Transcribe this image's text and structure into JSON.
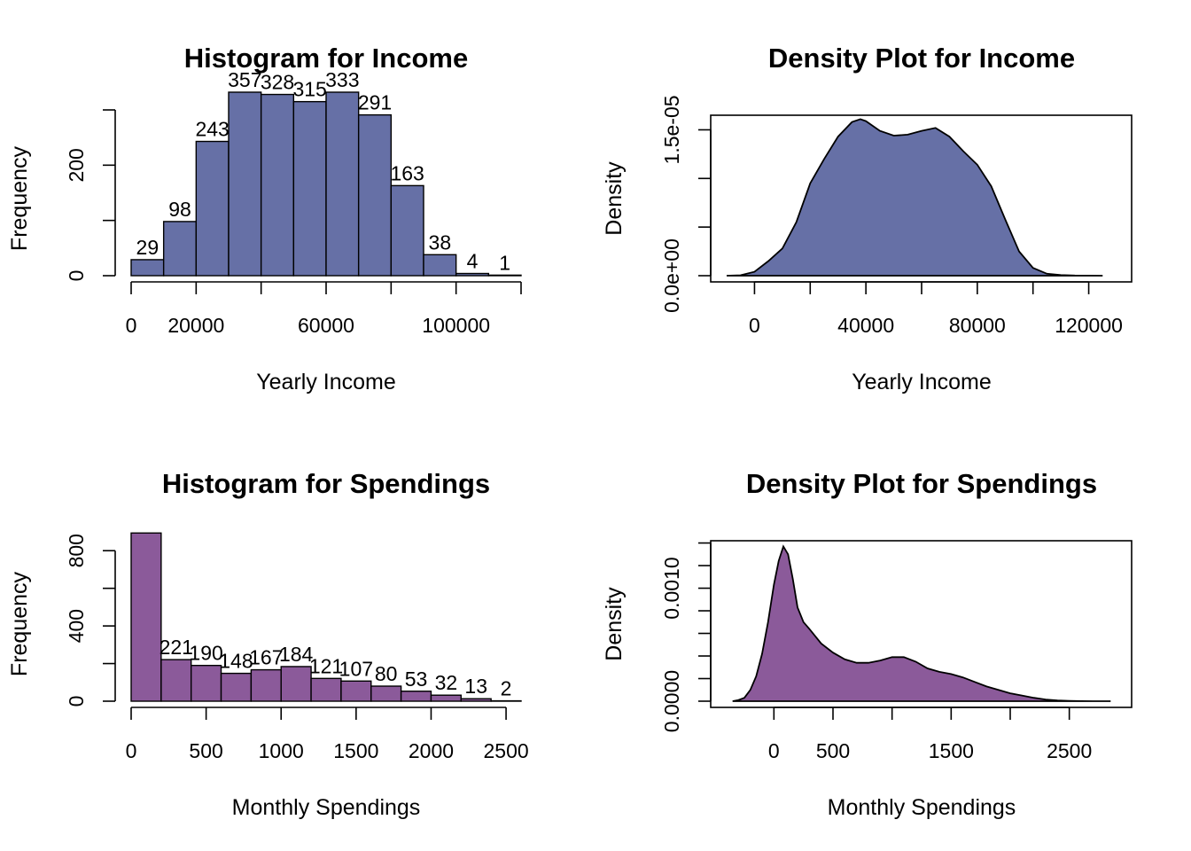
{
  "chart_data": [
    {
      "type": "bar",
      "subtype": "histogram",
      "title": "Histogram for Income",
      "xlabel": "Yearly Income",
      "ylabel": "Frequency",
      "color": "#6670a6",
      "xlim": [
        0,
        120000
      ],
      "ylim": [
        0,
        300
      ],
      "x_ticks": [
        0,
        20000,
        40000,
        60000,
        80000,
        100000,
        120000
      ],
      "x_tick_labels": [
        "0",
        "20000",
        "",
        "60000",
        "",
        "100000",
        ""
      ],
      "y_ticks": [
        0,
        100,
        200,
        300
      ],
      "y_tick_labels": [
        "0",
        "",
        "200",
        ""
      ],
      "bin_edges": [
        0,
        10000,
        20000,
        30000,
        40000,
        50000,
        60000,
        70000,
        80000,
        90000,
        100000,
        110000,
        120000
      ],
      "values": [
        29,
        98,
        243,
        357,
        328,
        315,
        333,
        291,
        163,
        38,
        4,
        1
      ],
      "data_labels": [
        "29",
        "98",
        "243",
        "357",
        "328",
        "315",
        "333",
        "291",
        "163",
        "38",
        "4",
        "1"
      ]
    },
    {
      "type": "area",
      "subtype": "density",
      "title": "Density Plot for Income",
      "xlabel": "Yearly Income",
      "ylabel": "Density",
      "color": "#6670a6",
      "xlim": [
        -10000,
        130000
      ],
      "ylim": [
        0,
        1.65e-05
      ],
      "x_ticks": [
        0,
        20000,
        40000,
        60000,
        80000,
        100000,
        120000
      ],
      "x_tick_labels": [
        "0",
        "",
        "40000",
        "",
        "80000",
        "",
        "120000"
      ],
      "y_ticks": [
        0,
        5e-06,
        1e-05,
        1.5e-05
      ],
      "y_tick_labels": [
        "0.0e+00",
        "",
        "",
        "1.5e-05"
      ],
      "x": [
        -10000,
        -5000,
        0,
        5000,
        10000,
        15000,
        20000,
        25000,
        30000,
        35000,
        38000,
        40000,
        45000,
        50000,
        55000,
        60000,
        65000,
        70000,
        75000,
        80000,
        85000,
        90000,
        95000,
        100000,
        105000,
        110000,
        115000,
        120000,
        125000
      ],
      "y": [
        0.0,
        5e-08,
        4e-07,
        1.5e-06,
        2.8e-06,
        5.5e-06,
        9.5e-06,
        1.2e-05,
        1.43e-05,
        1.58e-05,
        1.61e-05,
        1.59e-05,
        1.49e-05,
        1.44e-05,
        1.45e-05,
        1.49e-05,
        1.52e-05,
        1.43e-05,
        1.28e-05,
        1.14e-05,
        9.2e-06,
        5.8e-06,
        2.5e-06,
        8e-07,
        2e-07,
        6e-08,
        2e-08,
        1e-08,
        0.0
      ]
    },
    {
      "type": "bar",
      "subtype": "histogram",
      "title": "Histogram for Spendings",
      "xlabel": "Monthly Spendings",
      "ylabel": "Frequency",
      "color": "#8b5a9a",
      "xlim": [
        0,
        2600
      ],
      "ylim": [
        0,
        900
      ],
      "x_ticks": [
        0,
        500,
        1000,
        1500,
        2000,
        2500
      ],
      "x_tick_labels": [
        "0",
        "500",
        "1000",
        "1500",
        "2000",
        "2500"
      ],
      "y_ticks": [
        0,
        200,
        400,
        600,
        800
      ],
      "y_tick_labels": [
        "0",
        "",
        "400",
        "",
        "800"
      ],
      "bin_edges": [
        0,
        200,
        400,
        600,
        800,
        1000,
        1200,
        1400,
        1600,
        1800,
        2000,
        2200,
        2400,
        2600
      ],
      "values": [
        894,
        221,
        190,
        148,
        167,
        184,
        121,
        107,
        80,
        53,
        32,
        13,
        2
      ],
      "data_labels": [
        "",
        "221",
        "190",
        "148",
        "167",
        "184",
        "121",
        "107",
        "80",
        "53",
        "32",
        "13",
        "2"
      ]
    },
    {
      "type": "area",
      "subtype": "density",
      "title": "Density Plot for Spendings",
      "xlabel": "Monthly Spendings",
      "ylabel": "Density",
      "color": "#8b5a9a",
      "xlim": [
        -400,
        2900
      ],
      "ylim": [
        0,
        0.00142
      ],
      "x_ticks": [
        0,
        500,
        1000,
        1500,
        2000,
        2500
      ],
      "x_tick_labels": [
        "0",
        "500",
        "",
        "1500",
        "",
        "2500"
      ],
      "y_ticks": [
        0,
        0.0002,
        0.0004,
        0.0006,
        0.0008,
        0.001,
        0.0012,
        0.0014
      ],
      "y_tick_labels": [
        "0.0000",
        "",
        "",
        "",
        "",
        "0.0010",
        "",
        ""
      ],
      "x": [
        -350,
        -300,
        -250,
        -200,
        -150,
        -100,
        -50,
        0,
        40,
        80,
        120,
        160,
        200,
        250,
        300,
        400,
        500,
        600,
        700,
        800,
        900,
        1000,
        1100,
        1200,
        1300,
        1400,
        1500,
        1600,
        1700,
        1800,
        1900,
        2000,
        2100,
        2200,
        2300,
        2400,
        2500,
        2600,
        2700,
        2800,
        2850
      ],
      "y": [
        0.0,
        1e-05,
        3e-05,
        0.0001,
        0.00022,
        0.00042,
        0.0007,
        0.00103,
        0.00124,
        0.00137,
        0.0013,
        0.00108,
        0.00083,
        0.0007,
        0.00064,
        0.00051,
        0.00043,
        0.00037,
        0.00034,
        0.00034,
        0.00036,
        0.00039,
        0.00039,
        0.00035,
        0.00029,
        0.00026,
        0.00024,
        0.00021,
        0.00017,
        0.00013,
        0.0001,
        7e-05,
        5e-05,
        3e-05,
        1.5e-05,
        7e-06,
        3e-06,
        1e-06,
        0.0,
        0.0,
        0.0
      ]
    }
  ]
}
